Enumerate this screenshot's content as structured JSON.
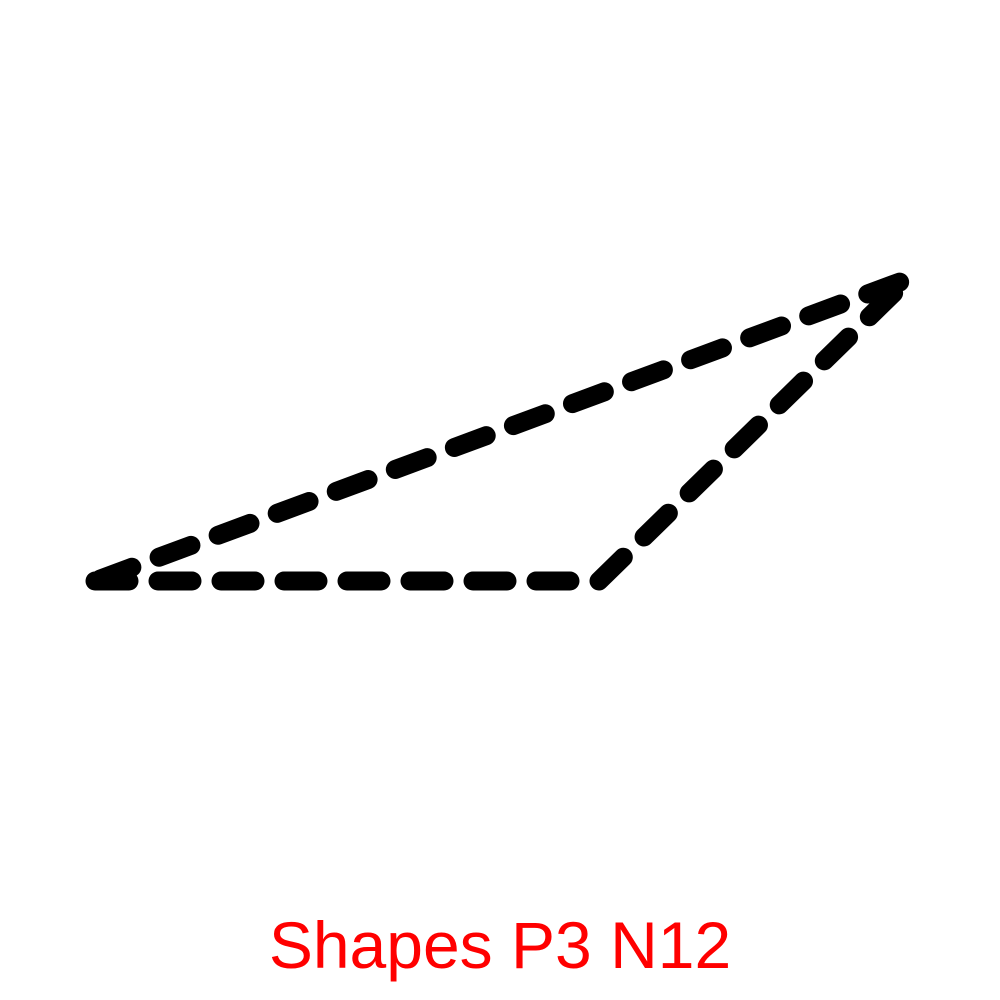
{
  "caption": "Shapes P3 N12",
  "colors": {
    "stroke": "#000000",
    "caption": "#ff0000",
    "background": "#ffffff"
  },
  "shape": {
    "kind": "triangle",
    "line_style": "dashed"
  }
}
